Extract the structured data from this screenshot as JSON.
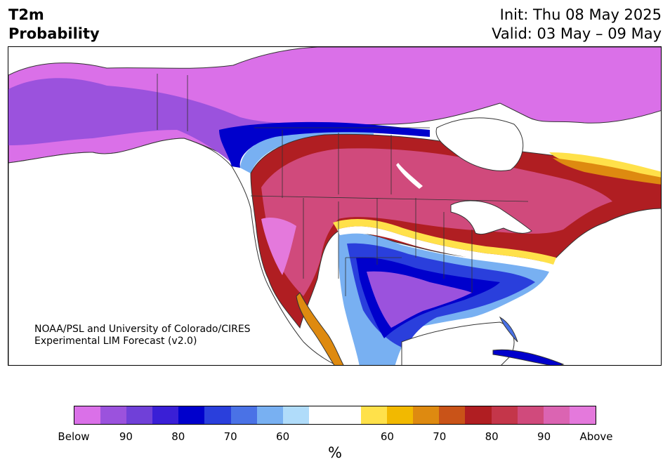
{
  "title": {
    "line1": "T2m",
    "line2": "Probability"
  },
  "init": "Init: Thu 08 May 2025",
  "valid": "Valid: 03 May – 09 May",
  "credit": {
    "line1": "NOAA/PSL and University of Colorado/CIRES",
    "line2": "Experimental LIM Forecast (v2.0)"
  },
  "colorbar": {
    "colors": [
      "#da70e8",
      "#9b52dd",
      "#7040d8",
      "#3a1fd6",
      "#0000cc",
      "#2a3fdc",
      "#4a72e6",
      "#78b0f2",
      "#b0dcfa",
      "#ffffff",
      "#ffffff",
      "#ffe14a",
      "#f2b900",
      "#de8a10",
      "#c95318",
      "#b01e22",
      "#c4364a",
      "#d04a7c",
      "#db64b2",
      "#e479dc"
    ],
    "ticks": [
      "Below",
      "90",
      "80",
      "70",
      "60",
      "60",
      "70",
      "80",
      "90",
      "Above"
    ],
    "unit": "%"
  },
  "map": {
    "land_outline_color": "#333333",
    "water_color": "#ffffff",
    "category_colors": {
      "below_strong": "#da70e8",
      "below_90": "#9b52dd",
      "below_80": "#0000cc",
      "below_70": "#2a3fdc",
      "below_60": "#78b0f2",
      "neutral": "#ffffff",
      "above_60": "#ffe14a",
      "above_70": "#de8a10",
      "above_80": "#b01e22",
      "above_90": "#c4364a",
      "above_strong": "#d04a7c"
    }
  }
}
